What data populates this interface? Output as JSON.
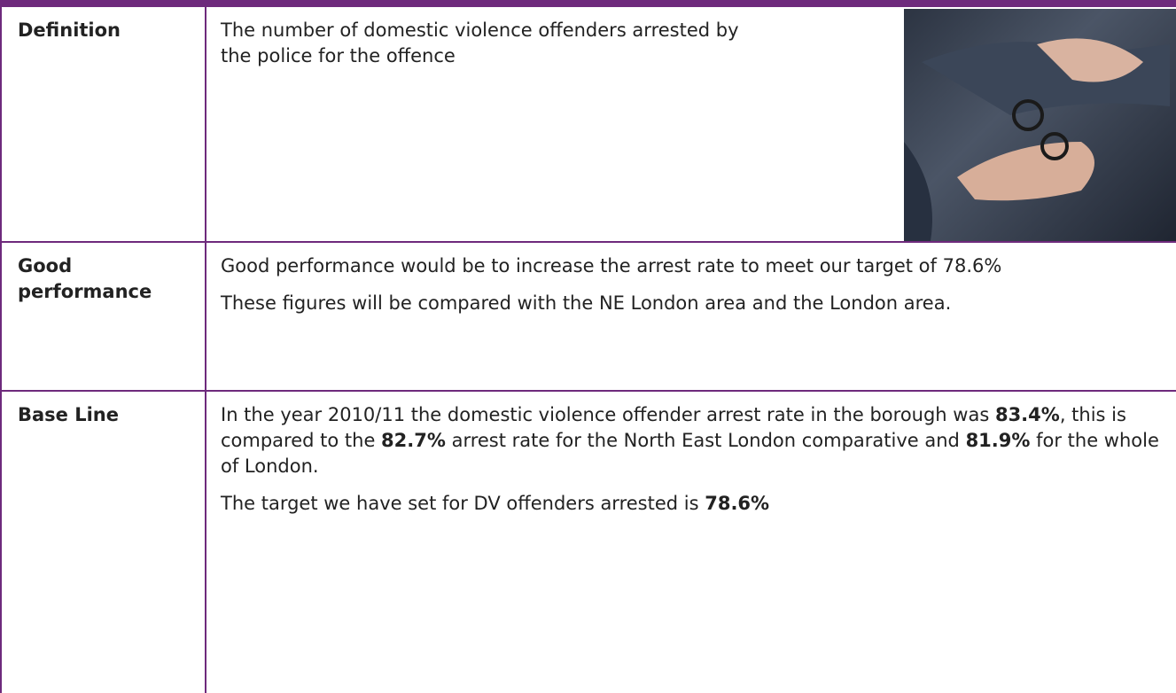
{
  "table": {
    "rows": [
      {
        "label": "Definition",
        "paragraphs": [
          [
            {
              "text": "The number of domestic violence offenders arrested by the police for the offence"
            }
          ]
        ]
      },
      {
        "label": "Good performance",
        "paragraphs": [
          [
            {
              "text": "Good performance would be to increase the arrest rate to meet our target of 78.6%"
            }
          ],
          [
            {
              "text": "These figures will be compared with the NE London area and the London area."
            }
          ]
        ]
      },
      {
        "label": "Base Line",
        "paragraphs": [
          [
            {
              "text": "In the year 2010/11 the domestic violence offender arrest rate in the borough was "
            },
            {
              "text": "83.4%",
              "bold": true
            },
            {
              "text": ", this is compared to the "
            },
            {
              "text": "82.7%",
              "bold": true
            },
            {
              "text": " arrest rate for the North East London comparative and "
            },
            {
              "text": "81.9%",
              "bold": true
            },
            {
              "text": " for the whole of London."
            }
          ],
          [
            {
              "text": "The target we have set for DV offenders arrested is "
            },
            {
              "text": "78.6%",
              "bold": true
            }
          ]
        ]
      }
    ]
  }
}
